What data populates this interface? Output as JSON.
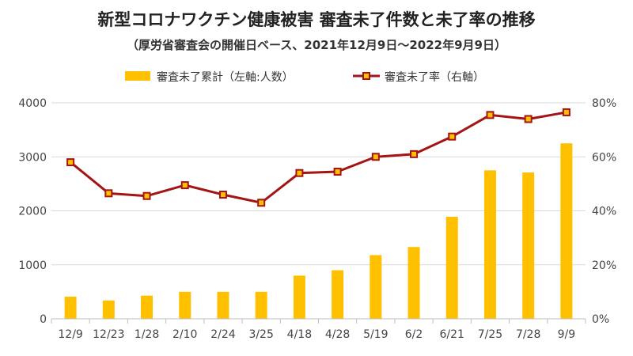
{
  "chart_data": {
    "type": "bar",
    "title": "新型コロナワクチン健康被害 審査未了件数と未了率の推移",
    "subtitle": "（厚労省審査会の開催日ベース、2021年12月9日～2022年9月9日）",
    "categories": [
      "12/9",
      "12/23",
      "1/28",
      "2/10",
      "2/24",
      "3/25",
      "4/18",
      "4/28",
      "5/19",
      "6/2",
      "6/21",
      "7/25",
      "7/28",
      "9/9"
    ],
    "series": [
      {
        "name": "審査未了累計（左軸:人数）",
        "type": "bar",
        "axis": "left",
        "color": "#ffc000",
        "values": [
          410,
          340,
          430,
          500,
          500,
          500,
          800,
          900,
          1180,
          1330,
          1890,
          2750,
          2710,
          3250
        ]
      },
      {
        "name": "審査未了率（右軸）",
        "type": "line",
        "axis": "right",
        "color": "#a31515",
        "marker_color": "#ffc000",
        "values": [
          0.58,
          0.465,
          0.455,
          0.495,
          0.46,
          0.43,
          0.54,
          0.545,
          0.6,
          0.61,
          0.675,
          0.755,
          0.74,
          0.765
        ]
      }
    ],
    "y_left": {
      "ticks": [
        "0",
        "1000",
        "2000",
        "3000",
        "4000"
      ],
      "ylim": [
        0,
        4000
      ]
    },
    "y_right": {
      "ticks": [
        "0%",
        "20%",
        "40%",
        "60%",
        "80%"
      ],
      "ylim": [
        0,
        0.8
      ]
    },
    "grid": true,
    "legend": "top-center"
  }
}
